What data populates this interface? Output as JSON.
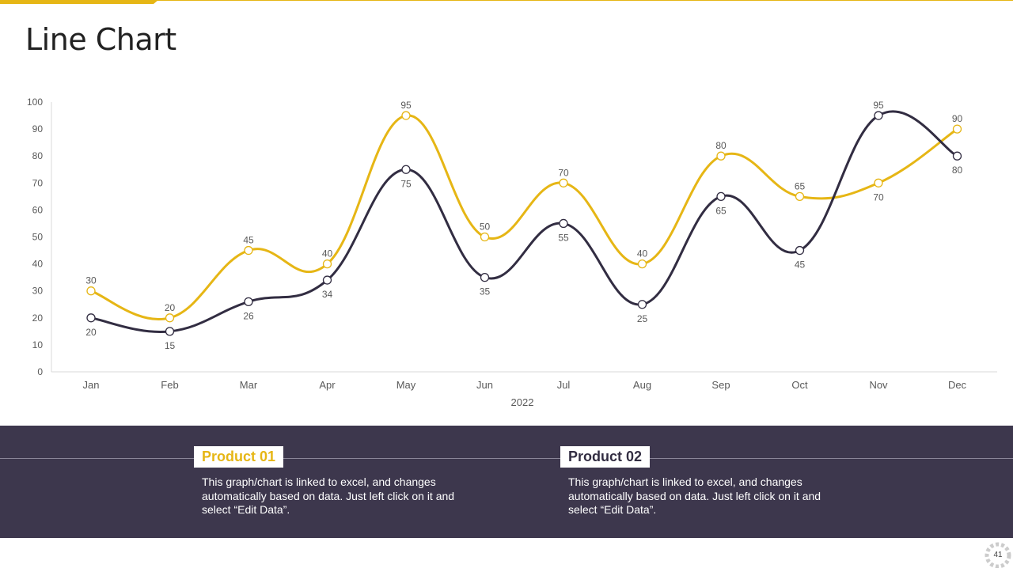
{
  "slide": {
    "title": "Line Chart",
    "page_number": "41"
  },
  "colors": {
    "accent": "#E6B615",
    "dark": "#322D42",
    "panel": "#3D374D"
  },
  "chart_data": {
    "type": "line",
    "categories": [
      "Jan",
      "Feb",
      "Mar",
      "Apr",
      "May",
      "Jun",
      "Jul",
      "Aug",
      "Sep",
      "Oct",
      "Nov",
      "Dec"
    ],
    "xlabel": "2022",
    "ylim": [
      0,
      100
    ],
    "yticks": [
      0,
      10,
      20,
      30,
      40,
      50,
      60,
      70,
      80,
      90,
      100
    ],
    "grid": false,
    "smooth": true,
    "series": [
      {
        "name": "Product 01",
        "color": "#E6B615",
        "values": [
          30,
          20,
          45,
          40,
          95,
          50,
          70,
          40,
          80,
          65,
          70,
          90
        ]
      },
      {
        "name": "Product 02",
        "color": "#322D42",
        "values": [
          20,
          15,
          26,
          34,
          75,
          35,
          55,
          25,
          65,
          45,
          95,
          80
        ]
      }
    ]
  },
  "legend": [
    {
      "label": "Product 01",
      "description": "This graph/chart is linked to excel, and changes automatically based on data. Just left click on it and select “Edit Data”."
    },
    {
      "label": "Product 02",
      "description": "This graph/chart is linked to excel, and changes automatically based on data. Just left click on it and select “Edit Data”."
    }
  ]
}
